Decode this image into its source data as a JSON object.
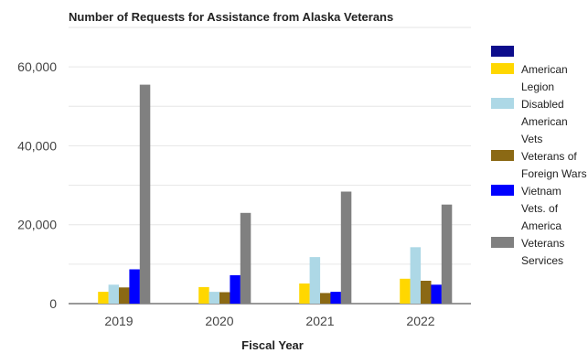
{
  "chart_data": {
    "type": "bar",
    "title": "Number of Requests for Assistance from Alaska Veterans",
    "xlabel": "Fiscal Year",
    "ylabel": "",
    "categories": [
      "2019",
      "2020",
      "2021",
      "2022"
    ],
    "ylim": [
      0,
      70000
    ],
    "yticks": [
      0,
      20000,
      40000,
      60000
    ],
    "ytick_labels": [
      "0",
      "20,000",
      "40,000",
      "60,000"
    ],
    "grid": true,
    "legend_position": "right",
    "series": [
      {
        "name": "",
        "color": "#0d0d8c",
        "values": [
          0,
          0,
          0,
          0
        ]
      },
      {
        "name": "American Legion",
        "legend_lines": [
          "American",
          "Legion"
        ],
        "color": "#ffd700",
        "values": [
          3000,
          4200,
          5100,
          6300
        ]
      },
      {
        "name": "Disabled American Vets",
        "legend_lines": [
          "Disabled",
          "American",
          "Vets"
        ],
        "color": "#add8e6",
        "values": [
          4800,
          3000,
          11800,
          14300
        ]
      },
      {
        "name": "Veterans of Foreign Wars",
        "legend_lines": [
          "Veterans of",
          "Foreign Wars"
        ],
        "color": "#8b6914",
        "values": [
          4100,
          2900,
          2700,
          5800
        ]
      },
      {
        "name": "Vietnam Vets. of America",
        "legend_lines": [
          "Vietnam",
          "Vets. of",
          "America"
        ],
        "color": "#0000ff",
        "values": [
          8700,
          7200,
          3000,
          4800
        ]
      },
      {
        "name": "Veterans Services",
        "legend_lines": [
          "Veterans",
          "Services"
        ],
        "color": "#808080",
        "values": [
          55500,
          23000,
          28400,
          25100
        ]
      }
    ]
  }
}
